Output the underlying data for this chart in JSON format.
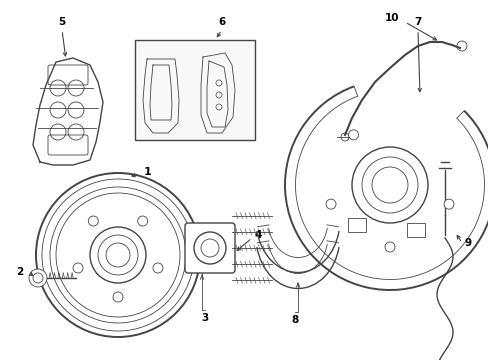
{
  "background_color": "#ffffff",
  "line_color": "#444444",
  "text_color": "#000000",
  "figure_width": 4.89,
  "figure_height": 3.6,
  "dpi": 100
}
